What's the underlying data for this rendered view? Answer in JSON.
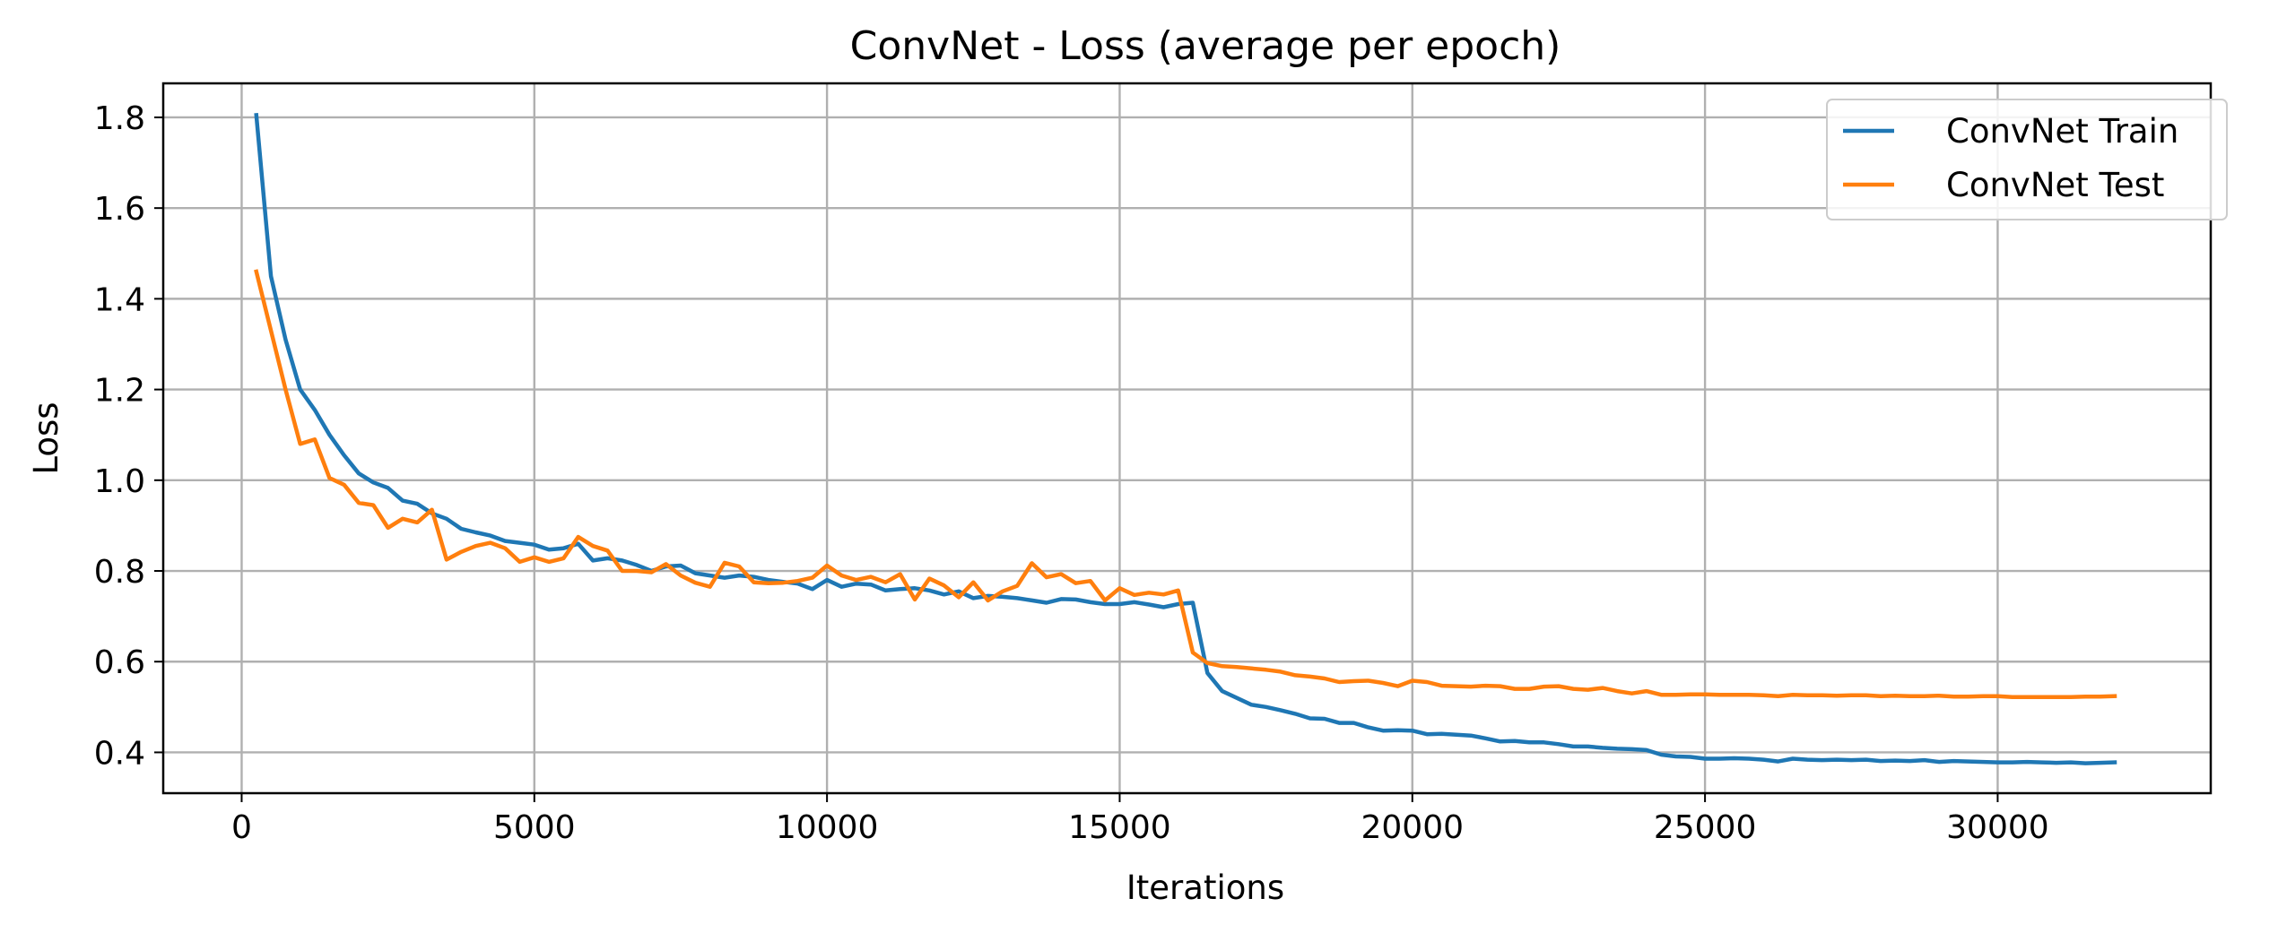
{
  "chart_data": {
    "type": "line",
    "title": "ConvNet - Loss (average per epoch)",
    "xlabel": "Iterations",
    "ylabel": "Loss",
    "xlim": [
      -1340,
      33640
    ],
    "ylim": [
      0.31,
      1.875
    ],
    "xticks": [
      0,
      5000,
      10000,
      15000,
      20000,
      25000,
      30000
    ],
    "xtick_labels": [
      "0",
      "5000",
      "10000",
      "15000",
      "20000",
      "25000",
      "30000"
    ],
    "yticks": [
      0.4,
      0.6,
      0.8,
      1.0,
      1.2,
      1.4,
      1.6,
      1.8
    ],
    "ytick_labels": [
      "0.4",
      "0.6",
      "0.8",
      "1.0",
      "1.2",
      "1.4",
      "1.6",
      "1.8"
    ],
    "grid": true,
    "legend_position": "top-right",
    "x": [
      250,
      500,
      750,
      1000,
      1250,
      1500,
      1750,
      2000,
      2250,
      2500,
      2750,
      3000,
      3250,
      3500,
      3750,
      4000,
      4250,
      4500,
      4750,
      5000,
      5250,
      5500,
      5750,
      6000,
      6250,
      6500,
      6750,
      7000,
      7250,
      7500,
      7750,
      8000,
      8250,
      8500,
      8750,
      9000,
      9250,
      9500,
      9750,
      10000,
      10250,
      10500,
      10750,
      11000,
      11250,
      11500,
      11750,
      12000,
      12250,
      12500,
      12750,
      13000,
      13250,
      13500,
      13750,
      14000,
      14250,
      14500,
      14750,
      15000,
      15250,
      15500,
      15750,
      16000,
      16250,
      16500,
      16750,
      17000,
      17250,
      17500,
      17750,
      18000,
      18250,
      18500,
      18750,
      19000,
      19250,
      19500,
      19750,
      20000,
      20250,
      20500,
      20750,
      21000,
      21250,
      21500,
      21750,
      22000,
      22250,
      22500,
      22750,
      23000,
      23250,
      23500,
      23750,
      24000,
      24250,
      24500,
      24750,
      25000,
      25250,
      25500,
      25750,
      26000,
      26250,
      26500,
      26750,
      27000,
      27250,
      27500,
      27750,
      28000,
      28250,
      28500,
      28750,
      29000,
      29250,
      29500,
      29750,
      30000,
      30250,
      30500,
      30750,
      31000,
      31250,
      31500,
      31750,
      32000
    ],
    "series": [
      {
        "name": "ConvNet Train",
        "color": "#1f77b4",
        "values": [
          1.805,
          1.45,
          1.31,
          1.2,
          1.155,
          1.1,
          1.055,
          1.015,
          0.995,
          0.983,
          0.955,
          0.948,
          0.927,
          0.915,
          0.893,
          0.885,
          0.878,
          0.866,
          0.862,
          0.858,
          0.847,
          0.85,
          0.86,
          0.823,
          0.828,
          0.823,
          0.813,
          0.8,
          0.81,
          0.812,
          0.795,
          0.79,
          0.785,
          0.79,
          0.787,
          0.78,
          0.776,
          0.772,
          0.76,
          0.78,
          0.765,
          0.772,
          0.77,
          0.757,
          0.76,
          0.762,
          0.757,
          0.748,
          0.755,
          0.74,
          0.745,
          0.743,
          0.74,
          0.735,
          0.73,
          0.738,
          0.737,
          0.731,
          0.727,
          0.727,
          0.731,
          0.726,
          0.72,
          0.727,
          0.73,
          0.575,
          0.535,
          0.52,
          0.505,
          0.5,
          0.493,
          0.485,
          0.475,
          0.474,
          0.465,
          0.465,
          0.455,
          0.448,
          0.449,
          0.448,
          0.44,
          0.441,
          0.439,
          0.437,
          0.431,
          0.424,
          0.425,
          0.422,
          0.422,
          0.418,
          0.413,
          0.413,
          0.41,
          0.408,
          0.407,
          0.405,
          0.395,
          0.391,
          0.39,
          0.386,
          0.386,
          0.387,
          0.386,
          0.384,
          0.38,
          0.386,
          0.384,
          0.383,
          0.384,
          0.383,
          0.384,
          0.381,
          0.382,
          0.381,
          0.383,
          0.379,
          0.381,
          0.38,
          0.379,
          0.378,
          0.378,
          0.379,
          0.378,
          0.377,
          0.378,
          0.376,
          0.377,
          0.378
        ]
      },
      {
        "name": "ConvNet Test",
        "color": "#ff7f0e",
        "values": [
          1.46,
          1.33,
          1.2,
          1.08,
          1.09,
          1.005,
          0.99,
          0.95,
          0.945,
          0.895,
          0.915,
          0.907,
          0.935,
          0.825,
          0.842,
          0.855,
          0.862,
          0.85,
          0.82,
          0.83,
          0.82,
          0.828,
          0.875,
          0.855,
          0.845,
          0.8,
          0.8,
          0.797,
          0.815,
          0.79,
          0.774,
          0.765,
          0.818,
          0.81,
          0.775,
          0.773,
          0.774,
          0.778,
          0.785,
          0.812,
          0.79,
          0.78,
          0.787,
          0.775,
          0.793,
          0.737,
          0.783,
          0.768,
          0.742,
          0.775,
          0.735,
          0.755,
          0.767,
          0.817,
          0.786,
          0.793,
          0.773,
          0.778,
          0.735,
          0.762,
          0.747,
          0.752,
          0.748,
          0.757,
          0.62,
          0.597,
          0.59,
          0.588,
          0.585,
          0.582,
          0.578,
          0.57,
          0.567,
          0.563,
          0.555,
          0.557,
          0.558,
          0.553,
          0.546,
          0.558,
          0.555,
          0.547,
          0.546,
          0.545,
          0.547,
          0.546,
          0.54,
          0.54,
          0.545,
          0.546,
          0.54,
          0.538,
          0.542,
          0.535,
          0.53,
          0.535,
          0.527,
          0.527,
          0.528,
          0.528,
          0.527,
          0.527,
          0.527,
          0.526,
          0.524,
          0.527,
          0.526,
          0.526,
          0.525,
          0.526,
          0.526,
          0.524,
          0.525,
          0.524,
          0.524,
          0.525,
          0.523,
          0.523,
          0.524,
          0.524,
          0.522,
          0.522,
          0.522,
          0.522,
          0.522,
          0.523,
          0.523,
          0.524
        ]
      }
    ]
  }
}
